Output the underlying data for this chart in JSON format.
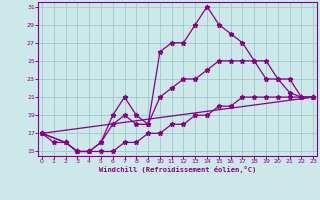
{
  "xlabel": "Windchill (Refroidissement éolien,°C)",
  "bg_color": "#cce8e8",
  "line_color": "#880088",
  "grid_color": "#99cccc",
  "xmin": 0,
  "xmax": 23,
  "ymin": 15,
  "ymax": 31,
  "yticks": [
    15,
    17,
    19,
    21,
    23,
    25,
    27,
    29,
    31
  ],
  "xticks": [
    0,
    1,
    2,
    3,
    4,
    5,
    6,
    7,
    8,
    9,
    10,
    11,
    12,
    13,
    14,
    15,
    16,
    17,
    18,
    19,
    20,
    21,
    22,
    23
  ],
  "line1_x": [
    0,
    1,
    2,
    3,
    4,
    5,
    6,
    7,
    8,
    9,
    10,
    11,
    12,
    13,
    14,
    15,
    16,
    17,
    18,
    19,
    20,
    21,
    22,
    23
  ],
  "line1_y": [
    17,
    16,
    16,
    15,
    15,
    16,
    19,
    21,
    19,
    18,
    26,
    27,
    27,
    29,
    31,
    29,
    28,
    27,
    25,
    25,
    23,
    21.5,
    21,
    21
  ],
  "line2_x": [
    0,
    2,
    3,
    4,
    5,
    6,
    7,
    8,
    9,
    10,
    11,
    12,
    13,
    14,
    15,
    16,
    17,
    18,
    19,
    20,
    21,
    22,
    23
  ],
  "line2_y": [
    17,
    16,
    15,
    15,
    16,
    18,
    19,
    18,
    18,
    21,
    22,
    23,
    23,
    24,
    25,
    25,
    25,
    25,
    23,
    23,
    23,
    21,
    21
  ],
  "line3_x": [
    0,
    2,
    3,
    4,
    5,
    6,
    7,
    8,
    9,
    10,
    11,
    12,
    13,
    14,
    15,
    16,
    17,
    18,
    19,
    20,
    21,
    22,
    23
  ],
  "line3_y": [
    17,
    16,
    15,
    15,
    15,
    15,
    16,
    16,
    17,
    17,
    18,
    18,
    19,
    19,
    20,
    20,
    21,
    21,
    21,
    21,
    21,
    21,
    21
  ],
  "line4_x": [
    0,
    23
  ],
  "line4_y": [
    17,
    21
  ]
}
